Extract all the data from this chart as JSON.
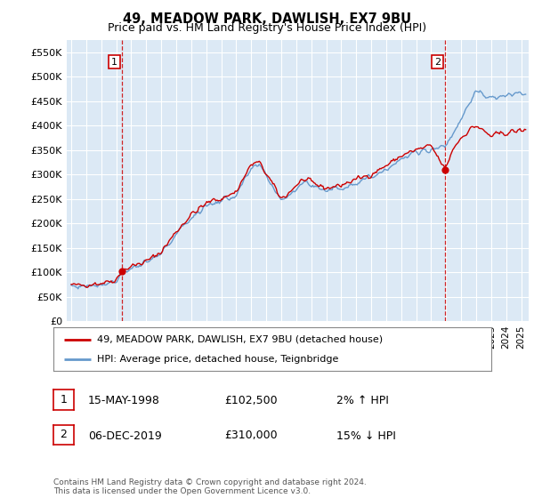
{
  "title": "49, MEADOW PARK, DAWLISH, EX7 9BU",
  "subtitle": "Price paid vs. HM Land Registry's House Price Index (HPI)",
  "footer": "Contains HM Land Registry data © Crown copyright and database right 2024.\nThis data is licensed under the Open Government Licence v3.0.",
  "legend_line1": "49, MEADOW PARK, DAWLISH, EX7 9BU (detached house)",
  "legend_line2": "HPI: Average price, detached house, Teignbridge",
  "transaction1_date": "15-MAY-1998",
  "transaction1_price": "£102,500",
  "transaction1_hpi": "2% ↑ HPI",
  "transaction2_date": "06-DEC-2019",
  "transaction2_price": "£310,000",
  "transaction2_hpi": "15% ↓ HPI",
  "ylim": [
    0,
    575000
  ],
  "yticks": [
    0,
    50000,
    100000,
    150000,
    200000,
    250000,
    300000,
    350000,
    400000,
    450000,
    500000,
    550000
  ],
  "ytick_labels": [
    "£0",
    "£50K",
    "£100K",
    "£150K",
    "£200K",
    "£250K",
    "£300K",
    "£350K",
    "£400K",
    "£450K",
    "£500K",
    "£550K"
  ],
  "background_color": "#ffffff",
  "plot_bg_color": "#dce9f5",
  "grid_color": "#ffffff",
  "red_color": "#cc0000",
  "blue_color": "#6699cc",
  "point1_x": 1998.37,
  "point1_y": 102500,
  "point2_x": 2019.92,
  "point2_y": 310000,
  "xlim_left": 1994.7,
  "xlim_right": 2025.5
}
